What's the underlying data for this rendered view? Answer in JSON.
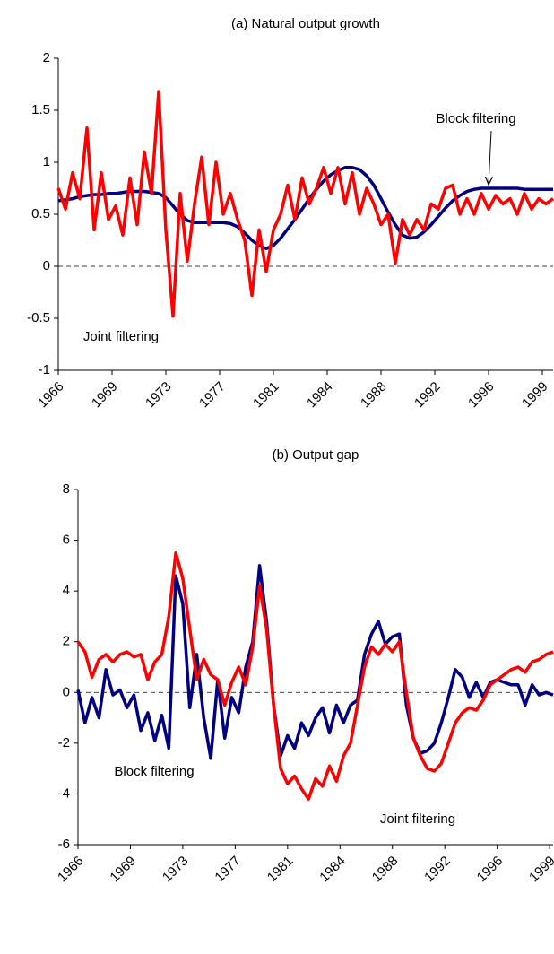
{
  "chart_data": [
    {
      "type": "line",
      "title": "(a) Natural output growth",
      "x": [
        1966,
        1966.5,
        1967,
        1967.5,
        1968,
        1968.5,
        1969,
        1969.5,
        1970,
        1970.5,
        1971,
        1971.5,
        1972,
        1972.5,
        1973,
        1973.5,
        1974,
        1974.5,
        1975,
        1975.5,
        1976,
        1976.5,
        1977,
        1977.5,
        1978,
        1978.5,
        1979,
        1979.5,
        1980,
        1980.5,
        1981,
        1981.5,
        1982,
        1982.5,
        1983,
        1983.5,
        1984,
        1984.5,
        1985,
        1985.5,
        1986,
        1986.5,
        1987,
        1987.5,
        1988,
        1988.5,
        1989,
        1989.5,
        1990,
        1990.5,
        1991,
        1991.5,
        1992,
        1992.5,
        1993,
        1993.5,
        1994,
        1994.5,
        1995,
        1995.5,
        1996,
        1996.5,
        1997,
        1997.5,
        1998,
        1998.5,
        1999,
        1999.5,
        2000,
        2000.5
      ],
      "series": [
        {
          "name": "Block filtering",
          "color": "#000080",
          "values": [
            0.63,
            0.64,
            0.65,
            0.67,
            0.68,
            0.69,
            0.69,
            0.7,
            0.7,
            0.71,
            0.72,
            0.72,
            0.72,
            0.71,
            0.7,
            0.66,
            0.58,
            0.5,
            0.44,
            0.42,
            0.42,
            0.42,
            0.42,
            0.42,
            0.41,
            0.38,
            0.32,
            0.25,
            0.2,
            0.17,
            0.2,
            0.27,
            0.36,
            0.45,
            0.55,
            0.65,
            0.74,
            0.82,
            0.88,
            0.92,
            0.95,
            0.95,
            0.93,
            0.87,
            0.78,
            0.65,
            0.52,
            0.4,
            0.3,
            0.27,
            0.28,
            0.33,
            0.4,
            0.48,
            0.56,
            0.63,
            0.68,
            0.72,
            0.74,
            0.75,
            0.75,
            0.75,
            0.75,
            0.75,
            0.75,
            0.74,
            0.74,
            0.74,
            0.74,
            0.74
          ]
        },
        {
          "name": "Joint filtering",
          "color": "#ff0000",
          "values": [
            0.75,
            0.55,
            0.9,
            0.65,
            1.33,
            0.35,
            0.9,
            0.45,
            0.58,
            0.3,
            0.85,
            0.4,
            1.1,
            0.7,
            1.68,
            0.35,
            -0.48,
            0.7,
            0.05,
            0.6,
            1.05,
            0.4,
            1.0,
            0.5,
            0.7,
            0.45,
            0.25,
            -0.28,
            0.35,
            -0.05,
            0.35,
            0.5,
            0.78,
            0.45,
            0.85,
            0.6,
            0.75,
            0.95,
            0.7,
            0.95,
            0.6,
            0.9,
            0.5,
            0.75,
            0.6,
            0.4,
            0.5,
            0.03,
            0.45,
            0.3,
            0.45,
            0.35,
            0.6,
            0.55,
            0.75,
            0.78,
            0.5,
            0.65,
            0.5,
            0.7,
            0.55,
            0.68,
            0.6,
            0.65,
            0.5,
            0.7,
            0.55,
            0.65,
            0.6,
            0.65
          ]
        }
      ],
      "xlim": [
        1966,
        2000.5
      ],
      "xticks": [
        1966,
        {
          "value": 1969.75,
          "label": "1969"
        },
        {
          "value": 1973.5,
          "label": "1973"
        },
        {
          "value": 1977.25,
          "label": "1977"
        },
        1981,
        {
          "value": 1984.75,
          "label": "1984"
        },
        {
          "value": 1988.5,
          "label": "1988"
        },
        {
          "value": 1992.25,
          "label": "1992"
        },
        1996,
        {
          "value": 1999.75,
          "label": "1999"
        }
      ],
      "ylim": [
        -1,
        2
      ],
      "yticks": [
        -1,
        -0.5,
        0,
        0.5,
        1,
        1.5,
        2
      ],
      "hline": 0
    },
    {
      "type": "line",
      "title": "(b) Output gap",
      "x": [
        1966,
        1966.5,
        1967,
        1967.5,
        1968,
        1968.5,
        1969,
        1969.5,
        1970,
        1970.5,
        1971,
        1971.5,
        1972,
        1972.5,
        1973,
        1973.5,
        1974,
        1974.5,
        1975,
        1975.5,
        1976,
        1976.5,
        1977,
        1977.5,
        1978,
        1978.5,
        1979,
        1979.5,
        1980,
        1980.5,
        1981,
        1981.5,
        1982,
        1982.5,
        1983,
        1983.5,
        1984,
        1984.5,
        1985,
        1985.5,
        1986,
        1986.5,
        1987,
        1987.5,
        1988,
        1988.5,
        1989,
        1989.5,
        1990,
        1990.5,
        1991,
        1991.5,
        1992,
        1992.5,
        1993,
        1993.5,
        1994,
        1994.5,
        1995,
        1995.5,
        1996,
        1996.5,
        1997,
        1997.5,
        1998,
        1998.5,
        1999,
        1999.5,
        2000
      ],
      "series": [
        {
          "name": "Block filtering",
          "color": "#000080",
          "values": [
            0.1,
            -1.2,
            -0.2,
            -1.0,
            0.9,
            -0.1,
            0.1,
            -0.6,
            -0.1,
            -1.5,
            -0.8,
            -1.9,
            -0.9,
            -2.2,
            4.6,
            3.5,
            -0.6,
            1.5,
            -1.0,
            -2.6,
            0.5,
            -1.8,
            -0.2,
            -0.8,
            1.0,
            2.0,
            5.0,
            2.8,
            -0.5,
            -2.5,
            -1.7,
            -2.2,
            -1.2,
            -1.7,
            -1.0,
            -0.6,
            -1.6,
            -0.5,
            -1.2,
            -0.5,
            -0.3,
            1.5,
            2.3,
            2.8,
            1.9,
            2.2,
            2.3,
            -0.5,
            -1.8,
            -2.4,
            -2.3,
            -2.0,
            -1.2,
            -0.2,
            0.9,
            0.6,
            -0.2,
            0.4,
            -0.2,
            0.4,
            0.5,
            0.4,
            0.3,
            0.3,
            -0.5,
            0.3,
            -0.1,
            0.0,
            -0.1
          ]
        },
        {
          "name": "Joint filtering",
          "color": "#ff0000",
          "values": [
            2.0,
            1.6,
            0.6,
            1.3,
            1.5,
            1.2,
            1.5,
            1.6,
            1.4,
            1.5,
            0.5,
            1.2,
            1.5,
            3.0,
            5.5,
            4.5,
            2.5,
            0.5,
            1.3,
            0.7,
            0.5,
            -0.5,
            0.4,
            1.0,
            0.3,
            1.8,
            4.2,
            2.5,
            -0.5,
            -3.0,
            -3.6,
            -3.3,
            -3.8,
            -4.2,
            -3.4,
            -3.7,
            -2.9,
            -3.5,
            -2.5,
            -2.0,
            -0.5,
            1.0,
            1.8,
            1.5,
            1.9,
            1.6,
            2.0,
            0.0,
            -1.8,
            -2.5,
            -3.0,
            -3.1,
            -2.8,
            -2.0,
            -1.2,
            -0.8,
            -0.6,
            -0.7,
            -0.3,
            0.3,
            0.5,
            0.7,
            0.9,
            1.0,
            0.8,
            1.2,
            1.3,
            1.5,
            1.6
          ]
        }
      ],
      "xlim": [
        1966,
        2000
      ],
      "xticks": [
        1966,
        {
          "value": 1969.75,
          "label": "1969"
        },
        {
          "value": 1973.5,
          "label": "1973"
        },
        {
          "value": 1977.25,
          "label": "1977"
        },
        1981,
        {
          "value": 1984.75,
          "label": "1984"
        },
        {
          "value": 1988.5,
          "label": "1988"
        },
        {
          "value": 1992.25,
          "label": "1992"
        },
        1996,
        {
          "value": 1999.75,
          "label": "1999"
        }
      ],
      "ylim": [
        -6,
        8
      ],
      "yticks": [
        -6,
        -4,
        -2,
        0,
        2,
        4,
        6,
        8
      ],
      "hline": 0
    }
  ]
}
